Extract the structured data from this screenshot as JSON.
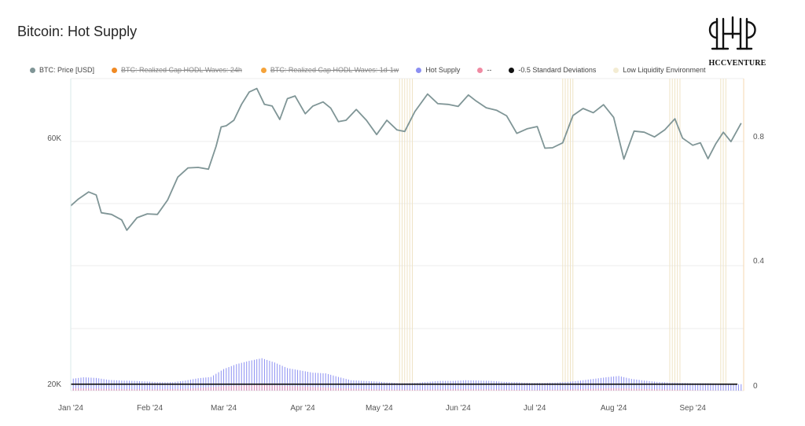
{
  "page": {
    "title": "Bitcoin: Hot Supply"
  },
  "logo": {
    "text": "HCCVENTURE"
  },
  "legend": [
    {
      "label": "BTC: Price [USD]",
      "color": "#7f9596",
      "off": false
    },
    {
      "label": "BTC: Realized Cap HODL Waves: 24h",
      "color": "#f08a24",
      "off": true
    },
    {
      "label": "BTC: Realized Cap HODL Waves: 1d-1w",
      "color": "#f5a33a",
      "off": true
    },
    {
      "label": "Hot Supply",
      "color": "#8b8ff2",
      "off": false
    },
    {
      "label": "--",
      "color": "#f08aa2",
      "off": false
    },
    {
      "label": "-0.5 Standard Deviations",
      "color": "#111111",
      "off": false
    },
    {
      "label": "Low Liquidity Environment",
      "color": "#f3ecd3",
      "off": false
    }
  ],
  "chart_data": {
    "type": "line",
    "title": "Bitcoin: Hot Supply",
    "x_tick_labels": [
      "Jan '24",
      "Feb '24",
      "Mar '24",
      "Apr '24",
      "May '24",
      "Jun '24",
      "Jul '24",
      "Aug '24",
      "Sep '24"
    ],
    "y_left_tick_labels": [
      "20K",
      "60K"
    ],
    "y_right_tick_labels": [
      "0",
      "0.4",
      "0.8"
    ],
    "y_left_scale": "log",
    "y_left_range": [
      20000,
      75000
    ],
    "y_right_range": [
      0,
      0.95
    ],
    "grid": true,
    "legend_position": "top",
    "series": [
      {
        "name": "BTC: Price [USD]",
        "color": "#7f9596",
        "axis": "left",
        "points": [
          [
            "2024-01-01",
            44200
          ],
          [
            "2024-01-04",
            45500
          ],
          [
            "2024-01-08",
            46900
          ],
          [
            "2024-01-11",
            46300
          ],
          [
            "2024-01-13",
            42900
          ],
          [
            "2024-01-17",
            42600
          ],
          [
            "2024-01-21",
            41600
          ],
          [
            "2024-01-23",
            39800
          ],
          [
            "2024-01-27",
            42000
          ],
          [
            "2024-01-31",
            42700
          ],
          [
            "2024-02-04",
            42600
          ],
          [
            "2024-02-08",
            45300
          ],
          [
            "2024-02-12",
            50000
          ],
          [
            "2024-02-16",
            52000
          ],
          [
            "2024-02-20",
            52100
          ],
          [
            "2024-02-24",
            51700
          ],
          [
            "2024-02-27",
            57000
          ],
          [
            "2024-02-29",
            62000
          ],
          [
            "2024-03-02",
            62300
          ],
          [
            "2024-03-05",
            63800
          ],
          [
            "2024-03-08",
            68300
          ],
          [
            "2024-03-11",
            72000
          ],
          [
            "2024-03-14",
            73100
          ],
          [
            "2024-03-17",
            68300
          ],
          [
            "2024-03-20",
            67800
          ],
          [
            "2024-03-23",
            64000
          ],
          [
            "2024-03-26",
            70000
          ],
          [
            "2024-03-29",
            70800
          ],
          [
            "2024-04-02",
            65600
          ],
          [
            "2024-04-05",
            67800
          ],
          [
            "2024-04-09",
            69000
          ],
          [
            "2024-04-12",
            67200
          ],
          [
            "2024-04-15",
            63400
          ],
          [
            "2024-04-18",
            63800
          ],
          [
            "2024-04-22",
            66800
          ],
          [
            "2024-04-26",
            63800
          ],
          [
            "2024-04-30",
            60000
          ],
          [
            "2024-05-04",
            63800
          ],
          [
            "2024-05-08",
            61200
          ],
          [
            "2024-05-11",
            60800
          ],
          [
            "2024-05-15",
            66200
          ],
          [
            "2024-05-20",
            71400
          ],
          [
            "2024-05-24",
            68500
          ],
          [
            "2024-05-28",
            68300
          ],
          [
            "2024-06-01",
            67700
          ],
          [
            "2024-06-05",
            71100
          ],
          [
            "2024-06-08",
            69300
          ],
          [
            "2024-06-12",
            67300
          ],
          [
            "2024-06-16",
            66600
          ],
          [
            "2024-06-20",
            65000
          ],
          [
            "2024-06-24",
            60300
          ],
          [
            "2024-06-28",
            61500
          ],
          [
            "2024-07-02",
            62100
          ],
          [
            "2024-07-05",
            56600
          ],
          [
            "2024-07-08",
            56700
          ],
          [
            "2024-07-12",
            57900
          ],
          [
            "2024-07-16",
            65100
          ],
          [
            "2024-07-20",
            67100
          ],
          [
            "2024-07-24",
            65900
          ],
          [
            "2024-07-28",
            68200
          ],
          [
            "2024-08-01",
            64600
          ],
          [
            "2024-08-05",
            54000
          ],
          [
            "2024-08-09",
            60900
          ],
          [
            "2024-08-13",
            60600
          ],
          [
            "2024-08-17",
            59400
          ],
          [
            "2024-08-21",
            61200
          ],
          [
            "2024-08-25",
            64200
          ],
          [
            "2024-08-28",
            59100
          ],
          [
            "2024-09-01",
            57300
          ],
          [
            "2024-09-04",
            57900
          ],
          [
            "2024-09-07",
            54100
          ],
          [
            "2024-09-10",
            57600
          ],
          [
            "2024-09-13",
            60600
          ],
          [
            "2024-09-16",
            58200
          ],
          [
            "2024-09-20",
            63000
          ]
        ]
      },
      {
        "name": "Hot Supply",
        "color": "#8b8ff2",
        "axis": "right",
        "style": "bars",
        "points": [
          [
            "2024-01-01",
            0.05
          ],
          [
            "2024-01-06",
            0.055
          ],
          [
            "2024-01-11",
            0.053
          ],
          [
            "2024-01-16",
            0.047
          ],
          [
            "2024-01-21",
            0.045
          ],
          [
            "2024-01-26",
            0.044
          ],
          [
            "2024-01-31",
            0.042
          ],
          [
            "2024-02-05",
            0.04
          ],
          [
            "2024-02-10",
            0.04
          ],
          [
            "2024-02-15",
            0.045
          ],
          [
            "2024-02-20",
            0.052
          ],
          [
            "2024-02-25",
            0.056
          ],
          [
            "2024-03-01",
            0.08
          ],
          [
            "2024-03-06",
            0.095
          ],
          [
            "2024-03-11",
            0.105
          ],
          [
            "2024-03-16",
            0.113
          ],
          [
            "2024-03-21",
            0.1
          ],
          [
            "2024-03-26",
            0.083
          ],
          [
            "2024-03-31",
            0.076
          ],
          [
            "2024-04-05",
            0.069
          ],
          [
            "2024-04-10",
            0.067
          ],
          [
            "2024-04-15",
            0.056
          ],
          [
            "2024-04-20",
            0.046
          ],
          [
            "2024-04-25",
            0.044
          ],
          [
            "2024-04-30",
            0.042
          ],
          [
            "2024-05-05",
            0.039
          ],
          [
            "2024-05-10",
            0.037
          ],
          [
            "2024-05-15",
            0.038
          ],
          [
            "2024-05-20",
            0.041
          ],
          [
            "2024-05-25",
            0.044
          ],
          [
            "2024-05-30",
            0.044
          ],
          [
            "2024-06-04",
            0.046
          ],
          [
            "2024-06-09",
            0.045
          ],
          [
            "2024-06-14",
            0.044
          ],
          [
            "2024-06-19",
            0.041
          ],
          [
            "2024-06-24",
            0.04
          ],
          [
            "2024-06-29",
            0.038
          ],
          [
            "2024-07-04",
            0.038
          ],
          [
            "2024-07-09",
            0.039
          ],
          [
            "2024-07-14",
            0.041
          ],
          [
            "2024-07-19",
            0.045
          ],
          [
            "2024-07-24",
            0.05
          ],
          [
            "2024-07-29",
            0.055
          ],
          [
            "2024-08-03",
            0.059
          ],
          [
            "2024-08-08",
            0.05
          ],
          [
            "2024-08-13",
            0.045
          ],
          [
            "2024-08-18",
            0.041
          ],
          [
            "2024-08-23",
            0.039
          ],
          [
            "2024-08-28",
            0.038
          ],
          [
            "2024-09-02",
            0.037
          ],
          [
            "2024-09-07",
            0.037
          ],
          [
            "2024-09-12",
            0.036
          ],
          [
            "2024-09-17",
            0.034
          ],
          [
            "2024-09-20",
            0.034
          ]
        ]
      },
      {
        "name": "--",
        "color": "#f08aa2",
        "axis": "right",
        "style": "bars",
        "points": [
          [
            "2024-01-01",
            0.022
          ],
          [
            "2024-01-15",
            0.02
          ],
          [
            "2024-02-01",
            0.018
          ],
          [
            "2024-02-15",
            0.02
          ],
          [
            "2024-03-01",
            0.028
          ],
          [
            "2024-03-15",
            0.032
          ],
          [
            "2024-04-01",
            0.027
          ],
          [
            "2024-04-15",
            0.022
          ],
          [
            "2024-05-01",
            0.018
          ],
          [
            "2024-05-15",
            0.017
          ],
          [
            "2024-06-01",
            0.019
          ],
          [
            "2024-06-15",
            0.018
          ],
          [
            "2024-07-01",
            0.016
          ],
          [
            "2024-07-15",
            0.018
          ],
          [
            "2024-08-01",
            0.022
          ],
          [
            "2024-08-15",
            0.019
          ],
          [
            "2024-09-01",
            0.016
          ],
          [
            "2024-09-20",
            0.014
          ]
        ]
      },
      {
        "name": "-0.5 Standard Deviations",
        "color": "#111111",
        "axis": "right",
        "style": "line",
        "points": [
          [
            "2024-01-01",
            0.034
          ],
          [
            "2024-09-20",
            0.034
          ]
        ]
      }
    ],
    "low_liquidity_dates": [
      "2024-05-09",
      "2024-05-10",
      "2024-05-11",
      "2024-05-12",
      "2024-05-13",
      "2024-05-14",
      "2024-07-12",
      "2024-07-13",
      "2024-07-14",
      "2024-07-15",
      "2024-07-16",
      "2024-08-23",
      "2024-08-24",
      "2024-08-25",
      "2024-08-26",
      "2024-08-27",
      "2024-09-12",
      "2024-09-13",
      "2024-09-14"
    ]
  }
}
